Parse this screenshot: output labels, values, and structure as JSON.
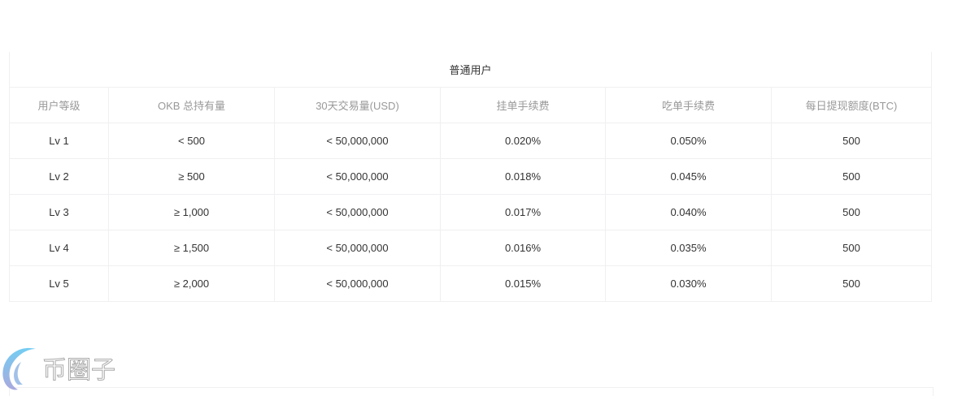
{
  "table": {
    "title": "普通用户",
    "headers": [
      "用户等级",
      "OKB 总持有量",
      "30天交易量(USD)",
      "挂单手续费",
      "吃单手续费",
      "每日提现额度(BTC)"
    ],
    "rows": [
      [
        "Lv 1",
        "< 500",
        "< 50,000,000",
        "0.020%",
        "0.050%",
        "500"
      ],
      [
        "Lv 2",
        "≥ 500",
        "< 50,000,000",
        "0.018%",
        "0.045%",
        "500"
      ],
      [
        "Lv 3",
        "≥ 1,000",
        "< 50,000,000",
        "0.017%",
        "0.040%",
        "500"
      ],
      [
        "Lv 4",
        "≥ 1,500",
        "< 50,000,000",
        "0.016%",
        "0.035%",
        "500"
      ],
      [
        "Lv 5",
        "≥ 2,000",
        "< 50,000,000",
        "0.015%",
        "0.030%",
        "500"
      ]
    ]
  },
  "watermark": {
    "text": "币圈子",
    "color": "#5bb8ea"
  }
}
